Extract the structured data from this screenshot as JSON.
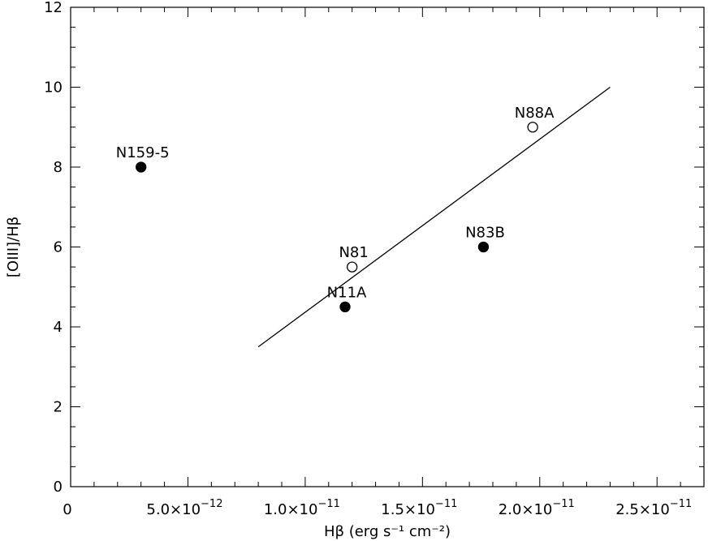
{
  "chart_data": {
    "type": "scatter",
    "title": "",
    "xlabel": "Hβ (erg s⁻¹ cm⁻²)",
    "ylabel": "[OIII]/Hβ",
    "xlim": [
      0,
      2.7e-11
    ],
    "ylim": [
      0,
      12
    ],
    "x_ticks": [
      {
        "value": 0,
        "mantissa": "0",
        "exp": ""
      },
      {
        "value": 5e-12,
        "mantissa": "5.0×10",
        "exp": "−12"
      },
      {
        "value": 1e-11,
        "mantissa": "1.0×10",
        "exp": "−11"
      },
      {
        "value": 1.5e-11,
        "mantissa": "1.5×10",
        "exp": "−11"
      },
      {
        "value": 2e-11,
        "mantissa": "2.0×10",
        "exp": "−11"
      },
      {
        "value": 2.5e-11,
        "mantissa": "2.5×10",
        "exp": "−11"
      }
    ],
    "y_ticks": [
      "0",
      "2",
      "4",
      "6",
      "8",
      "10",
      "12"
    ],
    "points": [
      {
        "label": "N159-5",
        "x": 3e-12,
        "y": 8.0,
        "filled": true
      },
      {
        "label": "N11A",
        "x": 1.17e-11,
        "y": 4.5,
        "filled": true
      },
      {
        "label": "N81",
        "x": 1.2e-11,
        "y": 5.5,
        "filled": false
      },
      {
        "label": "N83B",
        "x": 1.76e-11,
        "y": 6.0,
        "filled": true
      },
      {
        "label": "N88A",
        "x": 1.97e-11,
        "y": 9.0,
        "filled": false
      }
    ],
    "fit_line": {
      "x": [
        8e-12,
        2.3e-11
      ],
      "y": [
        3.5,
        10.0
      ]
    },
    "grid": false,
    "legend": "none"
  }
}
